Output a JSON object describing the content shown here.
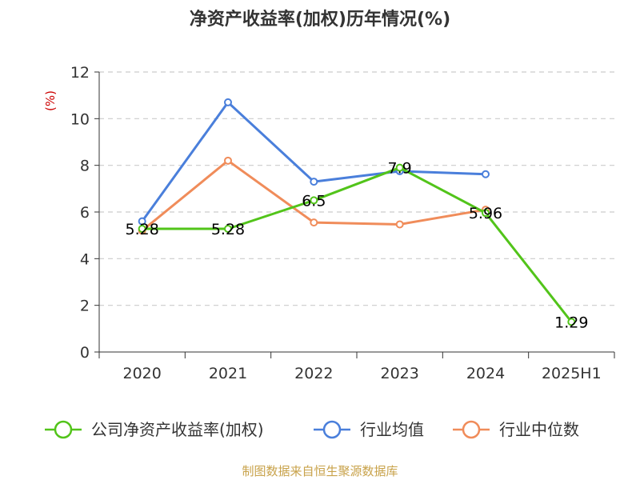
{
  "title": "净资产收益率(加权)历年情况(%)",
  "source": "制图数据来自恒生聚源数据库",
  "chart_data": {
    "type": "line",
    "title": "净资产收益率(加权)历年情况(%)",
    "ylabel": "(%)",
    "xlabel": "",
    "categories": [
      "2020",
      "2021",
      "2022",
      "2023",
      "2024",
      "2025H1"
    ],
    "ylim": [
      0,
      12
    ],
    "yticks": [
      0,
      2,
      4,
      6,
      8,
      10,
      12
    ],
    "grid": true,
    "legend_position": "bottom",
    "series": [
      {
        "name": "公司净资产收益率(加权)",
        "color": "#52c41a",
        "values": [
          5.28,
          5.28,
          6.5,
          7.9,
          5.96,
          1.29
        ],
        "labels": [
          "5.28",
          "5.28",
          "6.5",
          "7.9",
          "5.96",
          "1.29"
        ]
      },
      {
        "name": "行业均值",
        "color": "#4a7fdb",
        "values": [
          5.6,
          10.7,
          7.3,
          7.75,
          7.62,
          null
        ]
      },
      {
        "name": "行业中位数",
        "color": "#f08c5a",
        "values": [
          5.2,
          8.2,
          5.55,
          5.47,
          6.1,
          null
        ]
      }
    ]
  }
}
